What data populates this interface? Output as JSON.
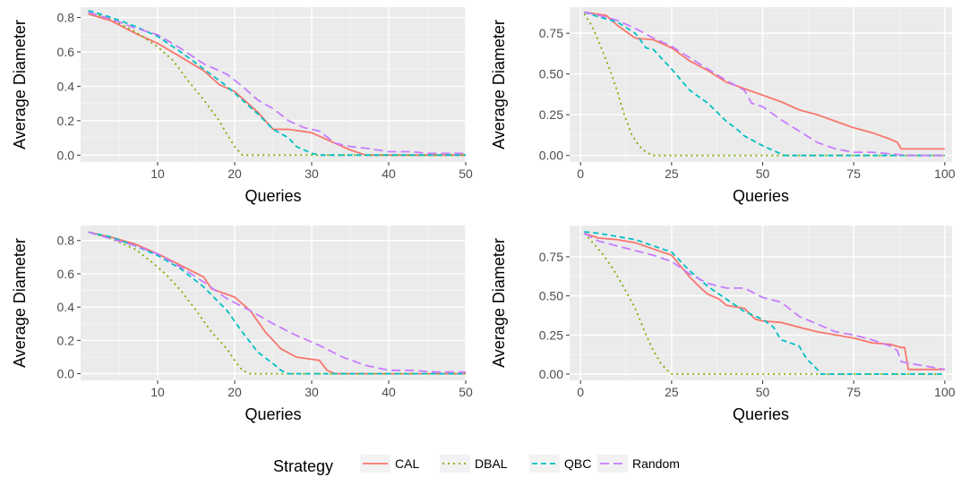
{
  "legend": {
    "title": "Strategy",
    "position": "bottom"
  },
  "series_style": [
    {
      "name": "CAL",
      "color": "#F8766D",
      "dash": "solid"
    },
    {
      "name": "DBAL",
      "color": "#7CAE00",
      "dash": "dotted"
    },
    {
      "name": "QBC",
      "color": "#00BFC4",
      "dash": "dashed"
    },
    {
      "name": "Random",
      "color": "#C77CFF",
      "dash": "longdash"
    }
  ],
  "chart_data": [
    {
      "type": "line",
      "xlabel": "Queries",
      "ylabel": "Average Diameter",
      "xlim": [
        0,
        50
      ],
      "ylim": [
        -0.04,
        0.86
      ],
      "xticks": [
        {
          "v": 10,
          "label": "10"
        },
        {
          "v": 20,
          "label": "20"
        },
        {
          "v": 30,
          "label": "30"
        },
        {
          "v": 40,
          "label": "40"
        },
        {
          "v": 50,
          "label": "50"
        }
      ],
      "yticks": [
        {
          "v": 0.0,
          "label": "0.0"
        },
        {
          "v": 0.2,
          "label": "0.2"
        },
        {
          "v": 0.4,
          "label": "0.4"
        },
        {
          "v": 0.6,
          "label": "0.6"
        },
        {
          "v": 0.8,
          "label": "0.8"
        }
      ],
      "grid": true,
      "series": [
        {
          "name": "CAL",
          "x": [
            1,
            4,
            7,
            10,
            13,
            16,
            18,
            20,
            21,
            23,
            25,
            27,
            30,
            33,
            35,
            37,
            50
          ],
          "y": [
            0.82,
            0.78,
            0.71,
            0.65,
            0.57,
            0.49,
            0.41,
            0.37,
            0.33,
            0.25,
            0.15,
            0.15,
            0.13,
            0.07,
            0.03,
            0.0,
            0.0
          ]
        },
        {
          "name": "DBAL",
          "x": [
            1,
            4,
            7,
            10,
            12,
            14,
            16,
            18,
            19,
            20,
            21,
            22,
            50
          ],
          "y": [
            0.83,
            0.79,
            0.72,
            0.63,
            0.55,
            0.43,
            0.32,
            0.2,
            0.12,
            0.05,
            0.0,
            0.0,
            0.0
          ]
        },
        {
          "name": "QBC",
          "x": [
            1,
            4,
            7,
            10,
            13,
            16,
            19,
            21,
            23,
            25,
            27,
            28,
            30,
            31,
            50
          ],
          "y": [
            0.84,
            0.8,
            0.75,
            0.69,
            0.6,
            0.5,
            0.4,
            0.32,
            0.24,
            0.15,
            0.1,
            0.05,
            0.01,
            0.0,
            0.0
          ]
        },
        {
          "name": "Random",
          "x": [
            1,
            4,
            7,
            10,
            13,
            16,
            19,
            21,
            23,
            25,
            27,
            29,
            31,
            33,
            35,
            37,
            40,
            43,
            45,
            50
          ],
          "y": [
            0.83,
            0.79,
            0.74,
            0.7,
            0.62,
            0.53,
            0.47,
            0.4,
            0.32,
            0.27,
            0.2,
            0.16,
            0.14,
            0.07,
            0.05,
            0.04,
            0.02,
            0.02,
            0.01,
            0.01
          ]
        }
      ]
    },
    {
      "type": "line",
      "xlabel": "Queries",
      "ylabel": "Average Diameter",
      "xlim": [
        -3,
        102
      ],
      "ylim": [
        -0.04,
        0.91
      ],
      "xticks": [
        {
          "v": 0,
          "label": "0"
        },
        {
          "v": 25,
          "label": "25"
        },
        {
          "v": 50,
          "label": "50"
        },
        {
          "v": 75,
          "label": "75"
        },
        {
          "v": 100,
          "label": "100"
        }
      ],
      "yticks": [
        {
          "v": 0.0,
          "label": "0.00"
        },
        {
          "v": 0.25,
          "label": "0.25"
        },
        {
          "v": 0.5,
          "label": "0.50"
        },
        {
          "v": 0.75,
          "label": "0.75"
        }
      ],
      "grid": true,
      "series": [
        {
          "name": "CAL",
          "x": [
            1,
            7,
            10,
            15,
            20,
            25,
            30,
            35,
            40,
            45,
            50,
            55,
            60,
            65,
            70,
            75,
            80,
            85,
            87,
            88,
            100
          ],
          "y": [
            0.88,
            0.86,
            0.8,
            0.72,
            0.71,
            0.66,
            0.58,
            0.52,
            0.45,
            0.41,
            0.37,
            0.33,
            0.28,
            0.25,
            0.21,
            0.17,
            0.14,
            0.1,
            0.08,
            0.04,
            0.04
          ]
        },
        {
          "name": "DBAL",
          "x": [
            1,
            3,
            5,
            8,
            10,
            12,
            14,
            16,
            18,
            20,
            22,
            100
          ],
          "y": [
            0.87,
            0.8,
            0.7,
            0.53,
            0.4,
            0.25,
            0.13,
            0.06,
            0.02,
            0.0,
            0.0,
            0.0
          ]
        },
        {
          "name": "QBC",
          "x": [
            1,
            5,
            10,
            15,
            18,
            20,
            25,
            30,
            35,
            40,
            43,
            45,
            50,
            53,
            56,
            100
          ],
          "y": [
            0.88,
            0.85,
            0.82,
            0.75,
            0.66,
            0.65,
            0.53,
            0.4,
            0.32,
            0.21,
            0.16,
            0.12,
            0.06,
            0.03,
            0.0,
            0.0
          ]
        },
        {
          "name": "Random",
          "x": [
            1,
            5,
            10,
            15,
            20,
            25,
            30,
            35,
            40,
            45,
            47,
            50,
            55,
            60,
            65,
            70,
            75,
            80,
            85,
            90,
            100
          ],
          "y": [
            0.88,
            0.86,
            0.83,
            0.78,
            0.72,
            0.67,
            0.6,
            0.53,
            0.46,
            0.4,
            0.32,
            0.3,
            0.22,
            0.15,
            0.08,
            0.04,
            0.02,
            0.02,
            0.01,
            0.0,
            0.0
          ]
        }
      ]
    },
    {
      "type": "line",
      "xlabel": "Queries",
      "ylabel": "Average Diameter",
      "xlim": [
        0,
        50
      ],
      "ylim": [
        -0.04,
        0.89
      ],
      "xticks": [
        {
          "v": 10,
          "label": "10"
        },
        {
          "v": 20,
          "label": "20"
        },
        {
          "v": 30,
          "label": "30"
        },
        {
          "v": 40,
          "label": "40"
        },
        {
          "v": 50,
          "label": "50"
        }
      ],
      "yticks": [
        {
          "v": 0.0,
          "label": "0.0"
        },
        {
          "v": 0.2,
          "label": "0.2"
        },
        {
          "v": 0.4,
          "label": "0.4"
        },
        {
          "v": 0.6,
          "label": "0.6"
        },
        {
          "v": 0.8,
          "label": "0.8"
        }
      ],
      "grid": true,
      "series": [
        {
          "name": "CAL",
          "x": [
            1,
            4,
            7,
            10,
            13,
            16,
            17,
            20,
            22,
            24,
            26,
            28,
            31,
            32,
            33,
            50
          ],
          "y": [
            0.85,
            0.82,
            0.78,
            0.72,
            0.65,
            0.58,
            0.51,
            0.46,
            0.38,
            0.25,
            0.15,
            0.1,
            0.08,
            0.02,
            0.0,
            0.0
          ]
        },
        {
          "name": "DBAL",
          "x": [
            1,
            4,
            7,
            9,
            11,
            13,
            15,
            17,
            19,
            20,
            21,
            22,
            50
          ],
          "y": [
            0.85,
            0.81,
            0.75,
            0.68,
            0.6,
            0.5,
            0.38,
            0.25,
            0.15,
            0.08,
            0.02,
            0.0,
            0.0
          ]
        },
        {
          "name": "QBC",
          "x": [
            1,
            4,
            7,
            10,
            13,
            16,
            19,
            21,
            23,
            25,
            26,
            27,
            50
          ],
          "y": [
            0.85,
            0.82,
            0.77,
            0.71,
            0.63,
            0.52,
            0.38,
            0.25,
            0.13,
            0.06,
            0.02,
            0.0,
            0.0
          ]
        },
        {
          "name": "Random",
          "x": [
            1,
            4,
            7,
            10,
            13,
            16,
            19,
            22,
            25,
            28,
            31,
            34,
            37,
            40,
            43,
            46,
            50
          ],
          "y": [
            0.85,
            0.81,
            0.77,
            0.72,
            0.64,
            0.55,
            0.45,
            0.38,
            0.3,
            0.23,
            0.17,
            0.1,
            0.05,
            0.02,
            0.02,
            0.01,
            0.01
          ]
        }
      ]
    },
    {
      "type": "line",
      "xlabel": "Queries",
      "ylabel": "Average Diameter",
      "xlim": [
        -3,
        102
      ],
      "ylim": [
        -0.04,
        0.95
      ],
      "xticks": [
        {
          "v": 0,
          "label": "0"
        },
        {
          "v": 25,
          "label": "25"
        },
        {
          "v": 50,
          "label": "50"
        },
        {
          "v": 75,
          "label": "75"
        },
        {
          "v": 100,
          "label": "100"
        }
      ],
      "yticks": [
        {
          "v": 0.0,
          "label": "0.00"
        },
        {
          "v": 0.25,
          "label": "0.25"
        },
        {
          "v": 0.5,
          "label": "0.50"
        },
        {
          "v": 0.75,
          "label": "0.75"
        }
      ],
      "grid": true,
      "series": [
        {
          "name": "CAL",
          "x": [
            1,
            5,
            10,
            15,
            20,
            25,
            30,
            33,
            35,
            38,
            40,
            45,
            48,
            50,
            55,
            60,
            65,
            70,
            75,
            80,
            85,
            88,
            89,
            90,
            100
          ],
          "y": [
            0.9,
            0.87,
            0.86,
            0.84,
            0.8,
            0.76,
            0.62,
            0.55,
            0.51,
            0.48,
            0.44,
            0.42,
            0.35,
            0.34,
            0.33,
            0.3,
            0.27,
            0.25,
            0.23,
            0.2,
            0.19,
            0.17,
            0.17,
            0.03,
            0.03
          ]
        },
        {
          "name": "DBAL",
          "x": [
            1,
            3,
            6,
            9,
            12,
            15,
            18,
            20,
            22,
            24,
            25,
            100
          ],
          "y": [
            0.9,
            0.85,
            0.77,
            0.67,
            0.55,
            0.42,
            0.25,
            0.15,
            0.07,
            0.02,
            0.0,
            0.0
          ]
        },
        {
          "name": "QBC",
          "x": [
            1,
            5,
            10,
            15,
            20,
            25,
            30,
            35,
            40,
            45,
            50,
            53,
            55,
            60,
            62,
            65,
            66,
            100
          ],
          "y": [
            0.91,
            0.9,
            0.88,
            0.86,
            0.82,
            0.78,
            0.66,
            0.56,
            0.48,
            0.4,
            0.35,
            0.3,
            0.22,
            0.18,
            0.1,
            0.03,
            0.0,
            0.0
          ]
        },
        {
          "name": "Random",
          "x": [
            1,
            5,
            10,
            15,
            20,
            25,
            30,
            35,
            40,
            45,
            50,
            55,
            60,
            65,
            70,
            75,
            80,
            85,
            87,
            88,
            90,
            100
          ],
          "y": [
            0.9,
            0.85,
            0.82,
            0.79,
            0.76,
            0.72,
            0.64,
            0.58,
            0.55,
            0.55,
            0.49,
            0.46,
            0.37,
            0.32,
            0.27,
            0.25,
            0.22,
            0.18,
            0.15,
            0.08,
            0.07,
            0.03
          ]
        }
      ]
    }
  ]
}
